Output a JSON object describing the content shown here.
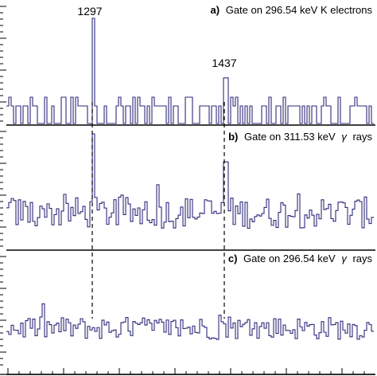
{
  "chart_data": {
    "type": "line",
    "title": "",
    "xlabel": "",
    "ylabel": "",
    "colors": {
      "spectrum": "#2e2a7a",
      "axes": "#000000",
      "marker_line": "#000000"
    },
    "peak_lines": [
      1297,
      1437
    ],
    "panels": [
      {
        "letter": "a)",
        "label": "Gate on 296.54 keV K electrons",
        "style": "histogram",
        "series": [
          {
            "x": [
              1200,
              1400
            ],
            "peaks": [
              {
                "energy": 1297,
                "label": "1297",
                "height": 6.0
              },
              {
                "energy": 1437,
                "label": "1437",
                "height": 2.6
              }
            ],
            "baseline": 0.5,
            "max_counts": 6.5
          }
        ]
      },
      {
        "letter": "b)",
        "label": "Gate on 311.53 keV",
        "gamma_word": "rays",
        "style": "histogram",
        "series": [
          {
            "peaks": [
              {
                "energy": 1297,
                "label": "",
                "height": 6.0
              },
              {
                "energy": 1437,
                "label": "",
                "height": 4.4
              }
            ],
            "baseline": 1.5,
            "max_counts": 6.5
          }
        ]
      },
      {
        "letter": "c)",
        "label": "Gate on 296.54 keV",
        "gamma_word": "rays",
        "style": "histogram",
        "series": [
          {
            "peaks": [],
            "baseline": 1.5,
            "max_counts": 6.5
          }
        ]
      }
    ]
  },
  "labels": {
    "peak1": "1297",
    "peak2": "1437",
    "a_letter": "a)",
    "a_text": "Gate on 296.54 keV K electrons",
    "b_letter": "b)",
    "b_text": "Gate on 311.53 keV",
    "b_gamma": "γ",
    "b_rays": "rays",
    "c_letter": "c)",
    "c_text": "Gate on 296.54 keV",
    "c_gamma": "γ",
    "c_rays": "rays"
  }
}
